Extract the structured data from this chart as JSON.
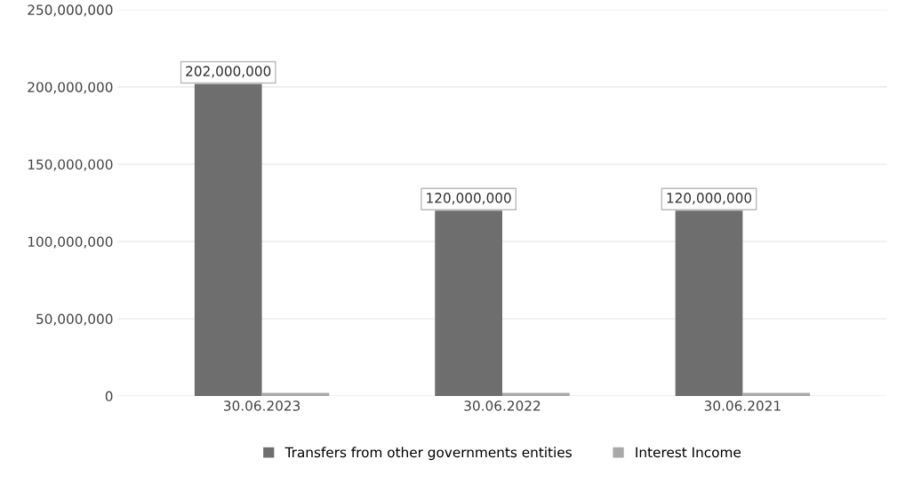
{
  "chart_data": {
    "type": "bar",
    "categories": [
      "30.06.2023",
      "30.06.2022",
      "30.06.2021"
    ],
    "series": [
      {
        "name": "Transfers from other governments entities",
        "color": "#6e6e6e",
        "values": [
          202000000,
          120000000,
          120000000
        ],
        "value_labels": [
          "202,000,000",
          "120,000,000",
          "120,000,000"
        ]
      },
      {
        "name": "Interest Income",
        "color": "#a8a8a8",
        "values": [
          2000000,
          2000000,
          2000000
        ]
      }
    ],
    "ylim": [
      0,
      250000000
    ],
    "yticks": [
      {
        "value": 0,
        "label": "0"
      },
      {
        "value": 50000000,
        "label": "50,000,000"
      },
      {
        "value": 100000000,
        "label": "100,000,000"
      },
      {
        "value": 150000000,
        "label": "150,000,000"
      },
      {
        "value": 200000000,
        "label": "200,000,000"
      },
      {
        "value": 250000000,
        "label": "250,000,000"
      }
    ],
    "grid": "y",
    "legend": "bottom"
  }
}
